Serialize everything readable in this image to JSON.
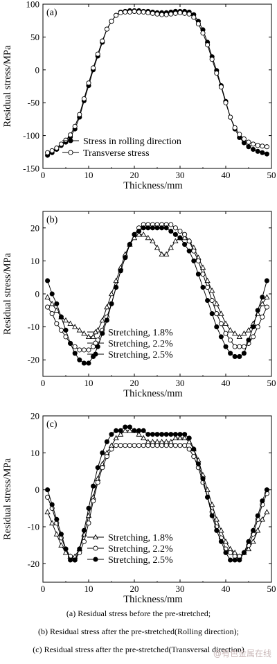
{
  "chart_data": [
    {
      "type": "line",
      "panel_label": "(a)",
      "xlabel": "Thickness/mm",
      "ylabel": "Residual stress/MPa",
      "xlim": [
        0,
        50
      ],
      "ylim": [
        -150,
        100
      ],
      "xticks": [
        0,
        10,
        20,
        30,
        40,
        50
      ],
      "yticks": [
        -150,
        -100,
        -50,
        0,
        50,
        100
      ],
      "legend_position": "bottom-center",
      "series": [
        {
          "name": "Stress in rolling direction",
          "marker": "filled-circle",
          "x": [
            1,
            2,
            3,
            4,
            5,
            6,
            7,
            8,
            9,
            10,
            11,
            12,
            13,
            14,
            15,
            16,
            17,
            18,
            19,
            20,
            21,
            22,
            23,
            24,
            25,
            26,
            27,
            28,
            29,
            30,
            31,
            32,
            33,
            34,
            35,
            36,
            37,
            38,
            39,
            40,
            41,
            42,
            43,
            44,
            45,
            46,
            47,
            48,
            49
          ],
          "y": [
            -130,
            -126,
            -121,
            -115,
            -110,
            -102,
            -90,
            -72,
            -47,
            -24,
            0,
            21,
            42,
            62,
            74,
            83,
            88,
            89,
            90,
            90,
            90,
            89,
            89,
            88,
            87,
            87,
            87,
            88,
            89,
            89,
            89,
            88,
            84,
            74,
            61,
            42,
            20,
            -1,
            -24,
            -48,
            -72,
            -90,
            -103,
            -111,
            -117,
            -121,
            -124,
            -126,
            -128
          ]
        },
        {
          "name": "Transverse stress",
          "marker": "open-circle",
          "x": [
            1,
            2,
            3,
            4,
            5,
            6,
            7,
            8,
            9,
            10,
            11,
            12,
            13,
            14,
            15,
            16,
            17,
            18,
            19,
            20,
            21,
            22,
            23,
            24,
            25,
            26,
            27,
            28,
            29,
            30,
            31,
            32,
            33,
            34,
            35,
            36,
            37,
            38,
            39,
            40,
            41,
            42,
            43,
            44,
            45,
            46,
            47,
            48,
            49
          ],
          "y": [
            -126,
            -123,
            -119,
            -113,
            -107,
            -99,
            -86,
            -68,
            -44,
            -20,
            3,
            24,
            44,
            62,
            74,
            83,
            87,
            88,
            88,
            89,
            88,
            88,
            87,
            86,
            85,
            84,
            84,
            85,
            86,
            87,
            86,
            85,
            80,
            70,
            56,
            38,
            16,
            -5,
            -26,
            -50,
            -72,
            -88,
            -98,
            -105,
            -110,
            -113,
            -115,
            -116,
            -117
          ]
        }
      ]
    },
    {
      "type": "line",
      "panel_label": "(b)",
      "xlabel": "Thickness/mm",
      "ylabel": "Residual stress/MPa",
      "xlim": [
        0,
        50
      ],
      "ylim": [
        -25,
        25
      ],
      "xticks": [
        0,
        10,
        20,
        30,
        40,
        50
      ],
      "yticks": [
        -20,
        -10,
        0,
        10,
        20
      ],
      "legend_position": "bottom-center",
      "series": [
        {
          "name": "Stretching, 1.8%",
          "marker": "open-triangle",
          "x": [
            1,
            2,
            3,
            4,
            5,
            6,
            7,
            8,
            9,
            10,
            11,
            12,
            13,
            14,
            15,
            16,
            17,
            18,
            19,
            20,
            21,
            22,
            23,
            24,
            25,
            26,
            27,
            28,
            29,
            30,
            31,
            32,
            33,
            34,
            35,
            36,
            37,
            38,
            39,
            40,
            41,
            42,
            43,
            44,
            45,
            46,
            47,
            48,
            49
          ],
          "y": [
            -1,
            -3,
            -5,
            -7,
            -8,
            -9,
            -10,
            -11,
            -12,
            -13,
            -13,
            -11,
            -8,
            -4,
            0,
            4,
            8,
            12,
            15,
            17,
            18,
            18,
            17,
            16,
            14,
            12,
            12,
            14,
            16,
            17,
            17,
            16,
            14,
            11,
            8,
            4,
            1,
            -3,
            -6,
            -9,
            -11,
            -12,
            -13,
            -12,
            -11,
            -9,
            -6,
            -3,
            -1
          ]
        },
        {
          "name": "Stretching, 2.2%",
          "marker": "open-circle",
          "x": [
            1,
            2,
            3,
            4,
            5,
            6,
            7,
            8,
            9,
            10,
            11,
            12,
            13,
            14,
            15,
            16,
            17,
            18,
            19,
            20,
            21,
            22,
            23,
            24,
            25,
            26,
            27,
            28,
            29,
            30,
            31,
            32,
            33,
            34,
            35,
            36,
            37,
            38,
            39,
            40,
            41,
            42,
            43,
            44,
            45,
            46,
            47,
            48,
            49
          ],
          "y": [
            -4,
            -6,
            -9,
            -11,
            -13,
            -15,
            -16,
            -17,
            -17,
            -17,
            -16,
            -14,
            -11,
            -7,
            -3,
            2,
            7,
            11,
            15,
            18,
            20,
            21,
            21,
            21,
            21,
            21,
            21,
            21,
            20,
            19,
            18,
            16,
            13,
            10,
            6,
            2,
            -2,
            -6,
            -9,
            -12,
            -14,
            -16,
            -16,
            -16,
            -15,
            -13,
            -10,
            -7,
            -4
          ]
        },
        {
          "name": "Stretching, 2.5%",
          "marker": "filled-circle",
          "x": [
            1,
            2,
            3,
            4,
            5,
            6,
            7,
            8,
            9,
            10,
            11,
            12,
            13,
            14,
            15,
            16,
            17,
            18,
            19,
            20,
            21,
            22,
            23,
            24,
            25,
            26,
            27,
            28,
            29,
            30,
            31,
            32,
            33,
            34,
            35,
            36,
            37,
            38,
            39,
            40,
            41,
            42,
            43,
            44,
            45,
            46,
            47,
            48,
            49
          ],
          "y": [
            4,
            0,
            -3,
            -7,
            -11,
            -15,
            -18,
            -20,
            -21,
            -21,
            -19,
            -16,
            -12,
            -8,
            -3,
            2,
            7,
            11,
            15,
            18,
            19,
            20,
            20,
            20,
            20,
            20,
            20,
            19,
            18,
            17,
            15,
            13,
            10,
            6,
            2,
            -2,
            -6,
            -10,
            -13,
            -16,
            -18,
            -19,
            -19,
            -18,
            -14,
            -10,
            -5,
            -1,
            4
          ]
        }
      ]
    },
    {
      "type": "line",
      "panel_label": "(c)",
      "xlabel": "Thickness/mm",
      "ylabel": "Residual stress/MPa",
      "xlim": [
        0,
        50
      ],
      "ylim": [
        -25,
        20
      ],
      "xticks": [
        0,
        10,
        20,
        30,
        40,
        50
      ],
      "yticks": [
        -20,
        -10,
        0,
        10,
        20
      ],
      "legend_position": "bottom-center",
      "series": [
        {
          "name": "Stretching, 1.8%",
          "marker": "open-triangle",
          "x": [
            1,
            2,
            3,
            4,
            5,
            6,
            7,
            8,
            9,
            10,
            11,
            12,
            13,
            14,
            15,
            16,
            17,
            18,
            19,
            20,
            21,
            22,
            23,
            24,
            25,
            26,
            27,
            28,
            29,
            30,
            31,
            32,
            33,
            34,
            35,
            36,
            37,
            38,
            39,
            40,
            41,
            42,
            43,
            44,
            45,
            46,
            47,
            48,
            49
          ],
          "y": [
            -6,
            -9,
            -12,
            -15,
            -17,
            -18,
            -18,
            -16,
            -12,
            -7,
            -2,
            3,
            7,
            10,
            12,
            14,
            15,
            16,
            16,
            16,
            15,
            14,
            13,
            13,
            13,
            13,
            13,
            13,
            14,
            14,
            14,
            13,
            11,
            8,
            4,
            0,
            -4,
            -8,
            -11,
            -14,
            -16,
            -17,
            -18,
            -17,
            -16,
            -14,
            -11,
            -8,
            -6
          ]
        },
        {
          "name": "Stretching, 2.2%",
          "marker": "open-circle",
          "x": [
            1,
            2,
            3,
            4,
            5,
            6,
            7,
            8,
            9,
            10,
            11,
            12,
            13,
            14,
            15,
            16,
            17,
            18,
            19,
            20,
            21,
            22,
            23,
            24,
            25,
            26,
            27,
            28,
            29,
            30,
            31,
            32,
            33,
            34,
            35,
            36,
            37,
            38,
            39,
            40,
            41,
            42,
            43,
            44,
            45,
            46,
            47,
            48,
            49
          ],
          "y": [
            -2,
            -5,
            -9,
            -13,
            -16,
            -18,
            -19,
            -17,
            -14,
            -9,
            -3,
            2,
            6,
            9,
            11,
            12,
            12,
            12,
            12,
            12,
            12,
            12,
            12,
            12,
            12,
            12,
            12,
            12,
            12,
            12,
            12,
            11,
            9,
            6,
            2,
            -2,
            -6,
            -10,
            -13,
            -16,
            -17,
            -18,
            -18,
            -17,
            -15,
            -12,
            -8,
            -4,
            -1
          ]
        },
        {
          "name": "Stretching, 2.5%",
          "marker": "filled-circle",
          "x": [
            1,
            2,
            3,
            4,
            5,
            6,
            7,
            8,
            9,
            10,
            11,
            12,
            13,
            14,
            15,
            16,
            17,
            18,
            19,
            20,
            21,
            22,
            23,
            24,
            25,
            26,
            27,
            28,
            29,
            30,
            31,
            32,
            33,
            34,
            35,
            36,
            37,
            38,
            39,
            40,
            41,
            42,
            43,
            44,
            45,
            46,
            47,
            48,
            49
          ],
          "y": [
            0,
            -4,
            -8,
            -12,
            -16,
            -19,
            -19,
            -16,
            -11,
            -5,
            1,
            6,
            10,
            13,
            15,
            16,
            16,
            17,
            17,
            16,
            16,
            16,
            15,
            15,
            15,
            15,
            15,
            15,
            15,
            15,
            15,
            14,
            11,
            7,
            3,
            -2,
            -7,
            -11,
            -14,
            -17,
            -19,
            -19,
            -19,
            -17,
            -14,
            -11,
            -7,
            -3,
            0
          ]
        }
      ]
    }
  ],
  "captions": [
    "(a)  Residual  stress  before  the  pre-stretched;",
    "(b)  Residual  stress  after  the  pre-stretched(Rolling  direction);",
    "(c) Residual stress after the pre-stretched(Transversal direction)"
  ],
  "watermark": "@有色金属在线"
}
